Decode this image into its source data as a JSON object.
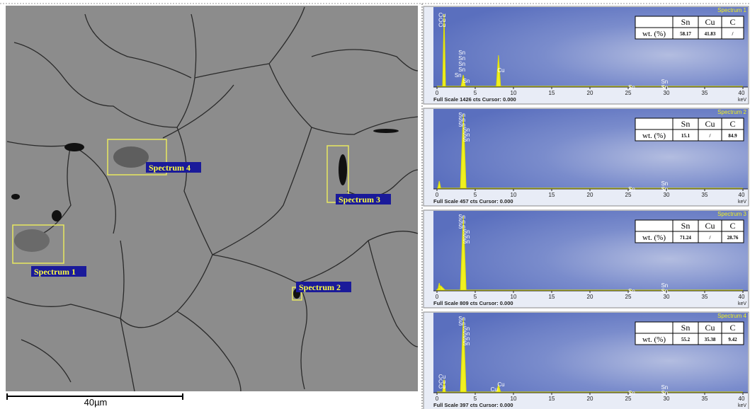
{
  "sem_image": {
    "regions": [
      "Spectrum 1",
      "Spectrum 2",
      "Spectrum 3",
      "Spectrum 4"
    ],
    "scale_bar": "40µm"
  },
  "spectrum_axis": {
    "ticks": [
      0,
      5,
      10,
      15,
      20,
      25,
      30,
      35,
      40
    ],
    "unit": "keV"
  },
  "table_header": [
    "Sn",
    "Cu",
    "C"
  ],
  "row_label": "wt. (%)",
  "spectra": [
    {
      "title": "Spectrum 1",
      "footer": "Full Scale 1426 cts Cursor: 0.000",
      "values": [
        58.17,
        41.83,
        "/"
      ],
      "peak_labels": [
        "Cu",
        "Cu",
        "Cu",
        "Sn",
        "Sn",
        "Sn",
        "Sn",
        "Sn",
        "Sn",
        "Cu",
        "Sn",
        "Sn",
        "Sn"
      ]
    },
    {
      "title": "Spectrum 2",
      "footer": "Full Scale 457 cts Cursor: 0.000",
      "values": [
        15.1,
        "/",
        84.9
      ],
      "peak_labels": [
        "Sn",
        "Sn",
        "Sn",
        "Sn",
        "Sn",
        "Sn",
        "Sn",
        "Sn",
        "Sn"
      ]
    },
    {
      "title": "Spectrum 3",
      "footer": "Full Scale 809 cts Cursor: 0.000",
      "values": [
        71.24,
        "/",
        28.76
      ],
      "peak_labels": [
        "Sn",
        "Sn",
        "Sn",
        "Sn",
        "Sn",
        "Sn",
        "Sn",
        "Sn",
        "Sn"
      ]
    },
    {
      "title": "Spectrum 4",
      "footer": "Full Scale 397 cts Cursor: 0.000",
      "values": [
        55.2,
        35.38,
        9.42
      ],
      "peak_labels": [
        "Sn",
        "Sn",
        "Sn",
        "Sn",
        "Sn",
        "Sn",
        "Cu",
        "Cu",
        "Cu",
        "Cu",
        "Cu",
        "Sn",
        "Sn",
        "Sn"
      ]
    }
  ]
}
